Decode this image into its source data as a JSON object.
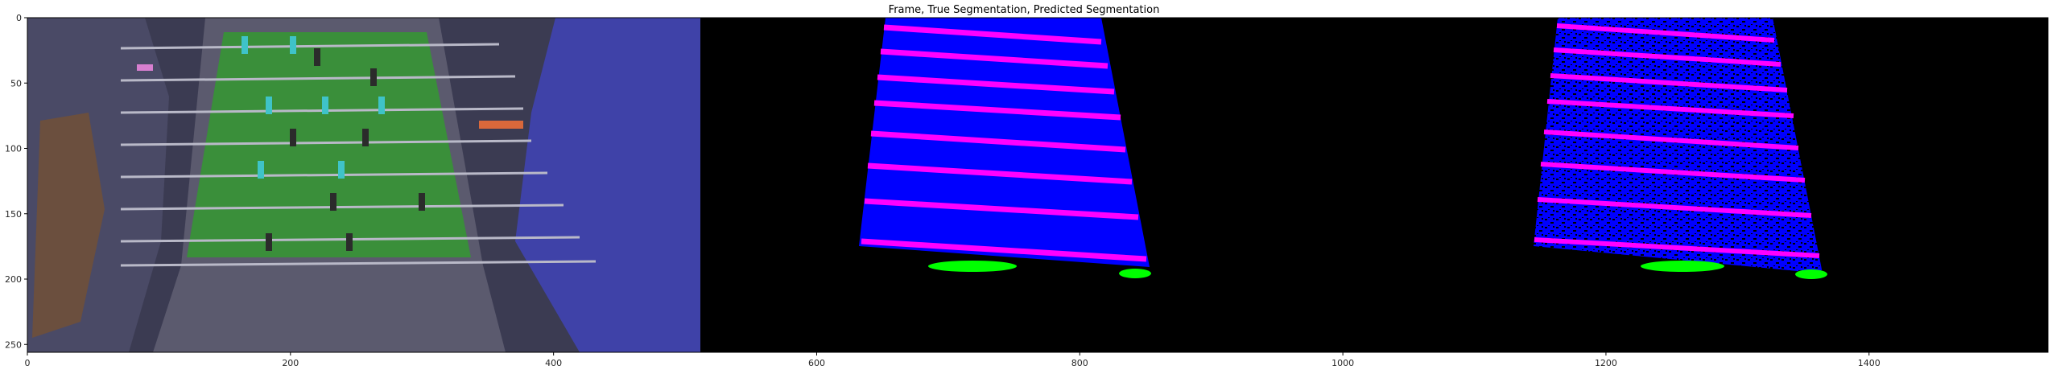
{
  "figure": {
    "title": "Frame, True Segmentation, Predicted Segmentation",
    "panels": [
      {
        "name": "frame",
        "description_label": ""
      },
      {
        "name": "true-segmentation",
        "description_label": ""
      },
      {
        "name": "predicted-segmentation",
        "description_label": ""
      }
    ]
  },
  "axes": {
    "x_ticks": [
      "0",
      "200",
      "400",
      "600",
      "800",
      "1000",
      "1200",
      "1400"
    ],
    "x_tick_values": [
      0,
      200,
      400,
      600,
      800,
      1000,
      1200,
      1400
    ],
    "y_ticks": [
      "0",
      "50",
      "100",
      "150",
      "200",
      "250"
    ],
    "y_tick_values": [
      0,
      50,
      100,
      150,
      200,
      250
    ],
    "xlim": [
      0,
      1536
    ],
    "ylim": [
      256,
      0
    ]
  },
  "colors": {
    "background": "#000000",
    "field": "#0000ff",
    "rods": "#ff00ff",
    "handles": "#00ff00",
    "table_green": "#3a8f3a",
    "frame_gray": "#5b5a6e"
  },
  "rod_count": 8
}
